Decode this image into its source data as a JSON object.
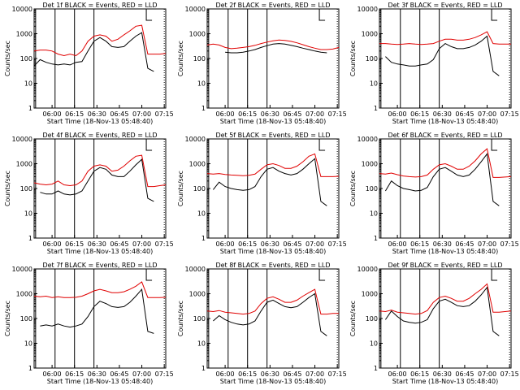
{
  "colors": {
    "events": "#000000",
    "lld": "#e00000",
    "axis": "#000000"
  },
  "chart_data": [
    {
      "type": "line",
      "title": "Det 1f BLACK = Events, RED = LLD",
      "xlabel": "Start Time (18-Nov-13 05:48:40)",
      "ylabel": "Counts/sec",
      "x_ticks": [
        "06:00",
        "06:15",
        "06:30",
        "06:45",
        "07:00",
        "07:15"
      ],
      "y_ticks": [
        "1",
        "10",
        "100",
        "1000",
        "10000"
      ],
      "yscale": "log",
      "ylim": [
        1,
        10000
      ],
      "x_minutes": [
        0,
        4,
        8,
        12,
        16,
        20,
        24,
        28,
        32,
        36,
        40,
        44,
        48,
        52,
        56,
        60,
        64,
        68,
        72,
        76,
        80,
        84,
        88
      ],
      "series": [
        {
          "name": "Events",
          "values": [
            50,
            90,
            70,
            60,
            55,
            60,
            55,
            70,
            75,
            200,
            500,
            700,
            500,
            300,
            280,
            300,
            500,
            800,
            1100,
            40,
            30,
            null,
            null
          ]
        },
        {
          "name": "LLD",
          "values": [
            200,
            220,
            220,
            200,
            150,
            130,
            150,
            130,
            200,
            500,
            800,
            900,
            800,
            500,
            600,
            900,
            1300,
            2000,
            2200,
            150,
            150,
            150,
            160
          ]
        }
      ],
      "markers_minutes": [
        1,
        14,
        27,
        40
      ],
      "bracket_minutes": 75,
      "dotted_minutes": 87
    },
    {
      "type": "line",
      "title": "Det 2f BLACK = Events, RED = LLD",
      "xlabel": "Start Time (18-Nov-13 05:48:40)",
      "ylabel": "Counts/sec",
      "x_ticks": [
        "06:00",
        "06:15",
        "06:30",
        "06:45",
        "07:00",
        "07:15"
      ],
      "y_ticks": [
        "1",
        "10",
        "100",
        "1000",
        "10000"
      ],
      "yscale": "log",
      "ylim": [
        1,
        10000
      ],
      "x_minutes": [
        0,
        4,
        8,
        12,
        16,
        20,
        24,
        28,
        32,
        36,
        40,
        44,
        48,
        52,
        56,
        60,
        64,
        68,
        72,
        76,
        80,
        84,
        88
      ],
      "series": [
        {
          "name": "Events",
          "values": [
            null,
            null,
            null,
            180,
            170,
            170,
            180,
            200,
            230,
            280,
            330,
            380,
            400,
            380,
            340,
            300,
            260,
            230,
            200,
            180,
            170,
            null,
            null
          ]
        },
        {
          "name": "LLD",
          "values": [
            350,
            380,
            350,
            280,
            250,
            260,
            280,
            300,
            340,
            400,
            460,
            520,
            560,
            540,
            490,
            430,
            360,
            300,
            260,
            230,
            230,
            240,
            280
          ]
        }
      ],
      "markers_minutes": [
        1,
        14,
        27,
        40
      ],
      "bracket_minutes": 75,
      "dotted_minutes": 87
    },
    {
      "type": "line",
      "title": "Det 3f BLACK = Events, RED = LLD",
      "xlabel": "Start Time (18-Nov-13 05:48:40)",
      "ylabel": "Counts/sec",
      "x_ticks": [
        "06:00",
        "06:15",
        "06:30",
        "06:45",
        "07:00",
        "07:15"
      ],
      "y_ticks": [
        "1",
        "10",
        "100",
        "1000",
        "10000"
      ],
      "yscale": "log",
      "ylim": [
        1,
        10000
      ],
      "x_minutes": [
        0,
        4,
        8,
        12,
        16,
        20,
        24,
        28,
        32,
        36,
        40,
        44,
        48,
        52,
        56,
        60,
        64,
        68,
        72,
        76,
        80,
        84,
        88
      ],
      "series": [
        {
          "name": "Events",
          "values": [
            null,
            120,
            70,
            60,
            55,
            50,
            50,
            55,
            60,
            90,
            250,
            400,
            300,
            250,
            250,
            280,
            350,
            500,
            800,
            30,
            20,
            null,
            null
          ]
        },
        {
          "name": "LLD",
          "values": [
            400,
            400,
            380,
            370,
            380,
            400,
            380,
            370,
            380,
            400,
            500,
            600,
            600,
            550,
            550,
            600,
            700,
            900,
            1200,
            400,
            380,
            380,
            380
          ]
        }
      ],
      "markers_minutes": [
        1,
        14,
        27,
        40
      ],
      "bracket_minutes": 75,
      "dotted_minutes": 87
    },
    {
      "type": "line",
      "title": "Det 4f BLACK = Events, RED = LLD",
      "xlabel": "Start Time (18-Nov-13 05:48:40)",
      "ylabel": "Counts/sec",
      "x_ticks": [
        "06:00",
        "06:15",
        "06:30",
        "06:45",
        "07:00",
        "07:15"
      ],
      "y_ticks": [
        "1",
        "10",
        "100",
        "1000",
        "10000"
      ],
      "yscale": "log",
      "ylim": [
        1,
        10000
      ],
      "x_minutes": [
        0,
        4,
        8,
        12,
        16,
        20,
        24,
        28,
        32,
        36,
        40,
        44,
        48,
        52,
        56,
        60,
        64,
        68,
        72,
        76,
        80,
        84,
        88
      ],
      "series": [
        {
          "name": "Events",
          "values": [
            null,
            70,
            60,
            60,
            80,
            60,
            55,
            60,
            80,
            200,
            500,
            700,
            600,
            350,
            300,
            300,
            500,
            900,
            1500,
            40,
            30,
            null,
            null
          ]
        },
        {
          "name": "LLD",
          "values": [
            170,
            150,
            140,
            150,
            200,
            140,
            130,
            140,
            200,
            500,
            800,
            900,
            800,
            500,
            550,
            800,
            1300,
            2000,
            2200,
            120,
            120,
            130,
            140
          ]
        }
      ],
      "markers_minutes": [
        1,
        14,
        27,
        40
      ],
      "bracket_minutes": 75,
      "dotted_minutes": 87
    },
    {
      "type": "line",
      "title": "Det 5f BLACK = Events, RED = LLD",
      "xlabel": "Start Time (18-Nov-13 05:48:40)",
      "ylabel": "Counts/sec",
      "x_ticks": [
        "06:00",
        "06:15",
        "06:30",
        "06:45",
        "07:00",
        "07:15"
      ],
      "y_ticks": [
        "1",
        "10",
        "100",
        "1000",
        "10000"
      ],
      "yscale": "log",
      "ylim": [
        1,
        10000
      ],
      "x_minutes": [
        0,
        4,
        8,
        12,
        16,
        20,
        24,
        28,
        32,
        36,
        40,
        44,
        48,
        52,
        56,
        60,
        64,
        68,
        72,
        76,
        80,
        84,
        88
      ],
      "series": [
        {
          "name": "Events",
          "values": [
            null,
            90,
            180,
            120,
            100,
            90,
            85,
            90,
            120,
            300,
            600,
            700,
            500,
            400,
            350,
            400,
            600,
            1000,
            1600,
            30,
            20,
            null,
            null
          ]
        },
        {
          "name": "LLD",
          "values": [
            400,
            380,
            400,
            370,
            350,
            340,
            330,
            340,
            380,
            600,
            900,
            1000,
            850,
            650,
            650,
            800,
            1200,
            2000,
            2500,
            300,
            300,
            300,
            310
          ]
        }
      ],
      "markers_minutes": [
        1,
        14,
        27,
        40
      ],
      "bracket_minutes": 75,
      "dotted_minutes": 87
    },
    {
      "type": "line",
      "title": "Det 6f BLACK = Events, RED = LLD",
      "xlabel": "Start Time (18-Nov-13 05:48:40)",
      "ylabel": "Counts/sec",
      "x_ticks": [
        "06:00",
        "06:15",
        "06:30",
        "06:45",
        "07:00",
        "07:15"
      ],
      "y_ticks": [
        "1",
        "10",
        "100",
        "1000",
        "10000"
      ],
      "yscale": "log",
      "ylim": [
        1,
        10000
      ],
      "x_minutes": [
        0,
        4,
        8,
        12,
        16,
        20,
        24,
        28,
        32,
        36,
        40,
        44,
        48,
        52,
        56,
        60,
        64,
        68,
        72,
        76,
        80,
        84,
        88
      ],
      "series": [
        {
          "name": "Events",
          "values": [
            null,
            80,
            200,
            130,
            100,
            90,
            80,
            85,
            110,
            300,
            600,
            700,
            500,
            350,
            300,
            350,
            600,
            1200,
            2500,
            30,
            20,
            null,
            null
          ]
        },
        {
          "name": "LLD",
          "values": [
            400,
            380,
            420,
            360,
            320,
            300,
            290,
            300,
            350,
            600,
            900,
            1000,
            800,
            600,
            600,
            800,
            1300,
            2500,
            4000,
            280,
            280,
            290,
            300
          ]
        }
      ],
      "markers_minutes": [
        1,
        14,
        27,
        40
      ],
      "bracket_minutes": 75,
      "dotted_minutes": 87
    },
    {
      "type": "line",
      "title": "Det 7f BLACK = Events, RED = LLD",
      "xlabel": "Start Time (18-Nov-13 05:48:40)",
      "ylabel": "Counts/sec",
      "x_ticks": [
        "06:00",
        "06:15",
        "06:30",
        "06:45",
        "07:00",
        "07:15"
      ],
      "y_ticks": [
        "1",
        "10",
        "100",
        "1000",
        "10000"
      ],
      "yscale": "log",
      "ylim": [
        1,
        10000
      ],
      "x_minutes": [
        0,
        4,
        8,
        12,
        16,
        20,
        24,
        28,
        32,
        36,
        40,
        44,
        48,
        52,
        56,
        60,
        64,
        68,
        72,
        76,
        80,
        84,
        88
      ],
      "series": [
        {
          "name": "Events",
          "values": [
            null,
            50,
            55,
            50,
            60,
            50,
            45,
            50,
            60,
            120,
            300,
            500,
            400,
            300,
            280,
            300,
            450,
            800,
            1500,
            30,
            25,
            null,
            null
          ]
        },
        {
          "name": "LLD",
          "values": [
            800,
            750,
            800,
            700,
            750,
            700,
            700,
            720,
            800,
            1000,
            1300,
            1500,
            1300,
            1100,
            1100,
            1200,
            1500,
            2000,
            3000,
            700,
            700,
            700,
            720
          ]
        }
      ],
      "markers_minutes": [
        1,
        14,
        27,
        40
      ],
      "bracket_minutes": 75,
      "dotted_minutes": 87
    },
    {
      "type": "line",
      "title": "Det 8f BLACK = Events, RED = LLD",
      "xlabel": "Start Time (18-Nov-13 05:48:40)",
      "ylabel": "Counts/sec",
      "x_ticks": [
        "06:00",
        "06:15",
        "06:30",
        "06:45",
        "07:00",
        "07:15"
      ],
      "y_ticks": [
        "1",
        "10",
        "100",
        "1000",
        "10000"
      ],
      "yscale": "log",
      "ylim": [
        1,
        10000
      ],
      "x_minutes": [
        0,
        4,
        8,
        12,
        16,
        20,
        24,
        28,
        32,
        36,
        40,
        44,
        48,
        52,
        56,
        60,
        64,
        68,
        72,
        76,
        80,
        84,
        88
      ],
      "series": [
        {
          "name": "Events",
          "values": [
            null,
            80,
            130,
            90,
            70,
            60,
            55,
            60,
            80,
            200,
            450,
            550,
            400,
            300,
            270,
            300,
            450,
            700,
            1000,
            30,
            20,
            null,
            null
          ]
        },
        {
          "name": "LLD",
          "values": [
            200,
            190,
            210,
            180,
            170,
            160,
            150,
            160,
            200,
            400,
            650,
            750,
            600,
            450,
            450,
            550,
            800,
            1100,
            1500,
            150,
            150,
            160,
            160
          ]
        }
      ],
      "markers_minutes": [
        1,
        14,
        27,
        40
      ],
      "bracket_minutes": 75,
      "dotted_minutes": 87
    },
    {
      "type": "line",
      "title": "Det 9f BLACK = Events, RED = LLD",
      "xlabel": "Start Time (18-Nov-13 05:48:40)",
      "ylabel": "Counts/sec",
      "x_ticks": [
        "06:00",
        "06:15",
        "06:30",
        "06:45",
        "07:00",
        "07:15"
      ],
      "y_ticks": [
        "1",
        "10",
        "100",
        "1000",
        "10000"
      ],
      "yscale": "log",
      "ylim": [
        1,
        10000
      ],
      "x_minutes": [
        0,
        4,
        8,
        12,
        16,
        20,
        24,
        28,
        32,
        36,
        40,
        44,
        48,
        52,
        56,
        60,
        64,
        68,
        72,
        76,
        80,
        84,
        88
      ],
      "series": [
        {
          "name": "Events",
          "values": [
            null,
            90,
            200,
            120,
            80,
            70,
            65,
            70,
            90,
            250,
            500,
            600,
            450,
            330,
            300,
            330,
            500,
            900,
            1800,
            30,
            20,
            null,
            null
          ]
        },
        {
          "name": "LLD",
          "values": [
            200,
            190,
            220,
            180,
            170,
            160,
            150,
            160,
            210,
            450,
            700,
            800,
            650,
            500,
            500,
            650,
            1000,
            1500,
            2500,
            180,
            180,
            190,
            200
          ]
        }
      ],
      "markers_minutes": [
        1,
        14,
        27,
        40
      ],
      "bracket_minutes": 75,
      "dotted_minutes": 87
    }
  ]
}
